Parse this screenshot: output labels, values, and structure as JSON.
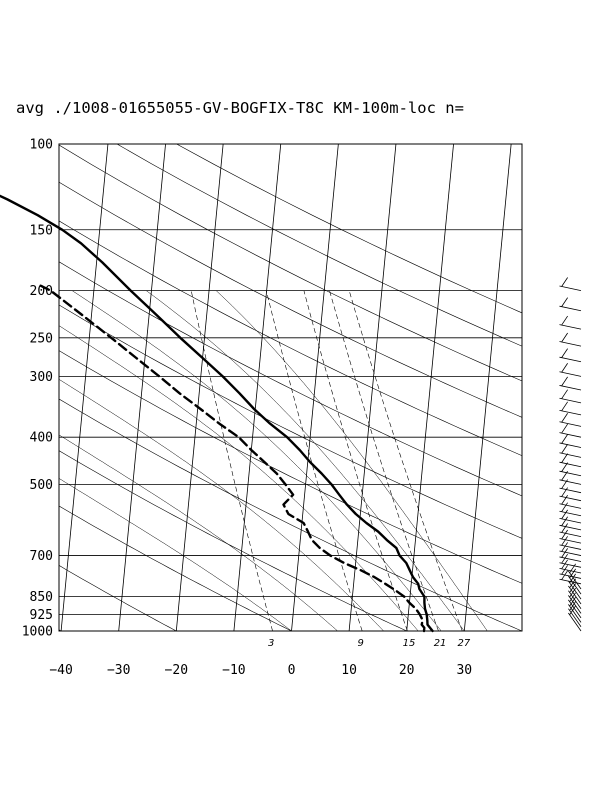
{
  "chart_data": {
    "type": "skew-t",
    "title": "avg ./1008-01655055-GV-BOGFIX-T8C KM-100m-loc n=",
    "pressure_ticks": [
      100,
      150,
      200,
      250,
      300,
      400,
      500,
      700,
      850,
      925,
      1000
    ],
    "pressure_tick_labels": [
      "100",
      "150",
      "200",
      "250",
      "300",
      "400",
      "500",
      "700",
      "850",
      "925",
      "1000"
    ],
    "temperature_ticks": [
      -40,
      -30,
      -20,
      -10,
      0,
      10,
      20,
      30
    ],
    "temperature_tick_labels": [
      "−40",
      "−30",
      "−20",
      "−10",
      "0",
      "10",
      "20",
      "30"
    ],
    "temperature_range": [
      -40,
      40
    ],
    "pressure_range": [
      1000,
      100
    ],
    "mixing_ratio_labels": [
      "3",
      "9",
      "15",
      "21",
      "27"
    ],
    "grid": true,
    "series": [
      {
        "line": "solid",
        "values": [
          [
            1000,
            24.5
          ],
          [
            985,
            24.0
          ],
          [
            970,
            23.5
          ],
          [
            950,
            23.4
          ],
          [
            925,
            23.2
          ],
          [
            900,
            22.8
          ],
          [
            875,
            22.6
          ],
          [
            850,
            22.5
          ],
          [
            820,
            21.5
          ],
          [
            800,
            21.2
          ],
          [
            775,
            20.2
          ],
          [
            750,
            19.5
          ],
          [
            725,
            18.8
          ],
          [
            700,
            17.5
          ],
          [
            675,
            16.8
          ],
          [
            650,
            15.0
          ],
          [
            625,
            13.4
          ],
          [
            600,
            11.2
          ],
          [
            575,
            9.2
          ],
          [
            550,
            7.5
          ],
          [
            525,
            6.0
          ],
          [
            500,
            4.5
          ],
          [
            475,
            2.6
          ],
          [
            450,
            0.4
          ],
          [
            425,
            -1.6
          ],
          [
            400,
            -4.0
          ],
          [
            375,
            -7.2
          ],
          [
            350,
            -10.2
          ],
          [
            325,
            -13.0
          ],
          [
            300,
            -16.2
          ],
          [
            275,
            -20.0
          ],
          [
            250,
            -24.2
          ],
          [
            225,
            -28.6
          ],
          [
            200,
            -33.6
          ],
          [
            175,
            -39.0
          ],
          [
            160,
            -43.0
          ],
          [
            150,
            -46.5
          ],
          [
            140,
            -51.0
          ],
          [
            130,
            -56.5
          ],
          [
            120,
            -63.0
          ],
          [
            115,
            -64.5
          ],
          [
            110,
            -63.0
          ],
          [
            100,
            -61.0
          ]
        ]
      },
      {
        "line": "dashed",
        "values": [
          [
            1000,
            23.0
          ],
          [
            985,
            23.0
          ],
          [
            970,
            22.5
          ],
          [
            950,
            22.6
          ],
          [
            925,
            22.0
          ],
          [
            900,
            21.2
          ],
          [
            875,
            20.0
          ],
          [
            850,
            19.0
          ],
          [
            820,
            17.0
          ],
          [
            800,
            15.5
          ],
          [
            775,
            13.5
          ],
          [
            750,
            11.0
          ],
          [
            725,
            8.0
          ],
          [
            700,
            5.5
          ],
          [
            675,
            3.5
          ],
          [
            650,
            2.0
          ],
          [
            625,
            1.2
          ],
          [
            600,
            0.3
          ],
          [
            575,
            -2.5
          ],
          [
            550,
            -3.5
          ],
          [
            525,
            -2.0
          ],
          [
            500,
            -3.5
          ],
          [
            475,
            -5.2
          ],
          [
            450,
            -7.5
          ],
          [
            425,
            -10.0
          ],
          [
            400,
            -12.4
          ],
          [
            375,
            -16.0
          ],
          [
            350,
            -19.5
          ],
          [
            325,
            -23.4
          ],
          [
            300,
            -27.2
          ],
          [
            275,
            -31.5
          ],
          [
            250,
            -36.2
          ],
          [
            225,
            -41.5
          ],
          [
            200,
            -47.5
          ],
          [
            195,
            -49.5
          ]
        ]
      }
    ]
  }
}
